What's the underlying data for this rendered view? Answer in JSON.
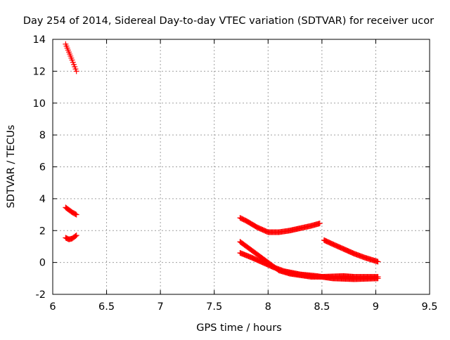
{
  "chart_data": {
    "type": "scatter",
    "title": "Day 254 of 2014, Sidereal Day-to-day VTEC variation (SDTVAR) for receiver ucor",
    "xlabel": "GPS time / hours",
    "ylabel": "SDTVAR / TECUs",
    "xlim": [
      6,
      9.5
    ],
    "ylim": [
      -2,
      14
    ],
    "xticks": [
      "6",
      "6.5",
      "7",
      "7.5",
      "8",
      "8.5",
      "9",
      "9.5"
    ],
    "yticks": [
      "-2",
      "0",
      "2",
      "4",
      "6",
      "8",
      "10",
      "12",
      "14"
    ],
    "grid": true,
    "legend": "none",
    "marker": "plus",
    "color": "#ff0000",
    "segments": [
      {
        "x_start": 6.12,
        "x_end": 6.22,
        "y_points": [
          [
            6.12,
            13.7
          ],
          [
            6.15,
            13.2
          ],
          [
            6.18,
            12.7
          ],
          [
            6.22,
            12.0
          ]
        ]
      },
      {
        "x_start": 6.12,
        "x_end": 6.22,
        "y_points": [
          [
            6.12,
            3.45
          ],
          [
            6.15,
            3.3
          ],
          [
            6.18,
            3.15
          ],
          [
            6.22,
            3.0
          ]
        ]
      },
      {
        "x_start": 6.12,
        "x_end": 6.22,
        "y_points": [
          [
            6.12,
            1.55
          ],
          [
            6.15,
            1.45
          ],
          [
            6.18,
            1.5
          ],
          [
            6.22,
            1.7
          ]
        ]
      },
      {
        "x_start": 7.74,
        "x_end": 8.48,
        "y_points": [
          [
            7.74,
            2.8
          ],
          [
            7.8,
            2.6
          ],
          [
            7.9,
            2.2
          ],
          [
            8.0,
            1.9
          ],
          [
            8.1,
            1.9
          ],
          [
            8.2,
            2.0
          ],
          [
            8.3,
            2.15
          ],
          [
            8.4,
            2.3
          ],
          [
            8.48,
            2.45
          ]
        ]
      },
      {
        "x_start": 8.52,
        "x_end": 9.02,
        "y_points": [
          [
            8.52,
            1.4
          ],
          [
            8.6,
            1.15
          ],
          [
            8.7,
            0.85
          ],
          [
            8.8,
            0.55
          ],
          [
            8.9,
            0.3
          ],
          [
            9.02,
            0.05
          ]
        ]
      },
      {
        "x_start": 7.74,
        "x_end": 9.02,
        "y_points": [
          [
            7.74,
            1.3
          ],
          [
            7.82,
            0.9
          ],
          [
            7.9,
            0.5
          ],
          [
            8.0,
            0.0
          ],
          [
            8.1,
            -0.5
          ],
          [
            8.2,
            -0.7
          ],
          [
            8.3,
            -0.8
          ],
          [
            8.4,
            -0.9
          ],
          [
            8.5,
            -0.9
          ],
          [
            8.7,
            -0.85
          ],
          [
            8.8,
            -0.9
          ],
          [
            9.02,
            -0.9
          ]
        ]
      },
      {
        "x_start": 7.74,
        "x_end": 9.02,
        "y_points": [
          [
            7.74,
            0.6
          ],
          [
            7.85,
            0.3
          ],
          [
            7.95,
            0.0
          ],
          [
            8.05,
            -0.3
          ],
          [
            8.15,
            -0.55
          ],
          [
            8.3,
            -0.75
          ],
          [
            8.45,
            -0.85
          ],
          [
            8.6,
            -1.0
          ],
          [
            8.8,
            -1.05
          ],
          [
            9.02,
            -1.0
          ]
        ]
      }
    ]
  }
}
